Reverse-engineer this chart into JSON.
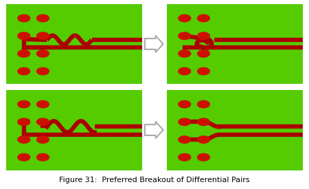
{
  "bg_color": "#ffffff",
  "green_color": "#55cc00",
  "red_color": "#cc1100",
  "dark_red": "#aa0000",
  "title": "Figure 31:  Preferred Breakout of Differential Pairs",
  "title_fontsize": 8,
  "fig_width": 4.5,
  "fig_height": 2.75,
  "panels": [
    {
      "row": 0,
      "col": 0,
      "type": "bad_top"
    },
    {
      "row": 0,
      "col": 1,
      "type": "good_top"
    },
    {
      "row": 1,
      "col": 0,
      "type": "bad_bottom"
    },
    {
      "row": 1,
      "col": 1,
      "type": "good_bottom"
    }
  ]
}
